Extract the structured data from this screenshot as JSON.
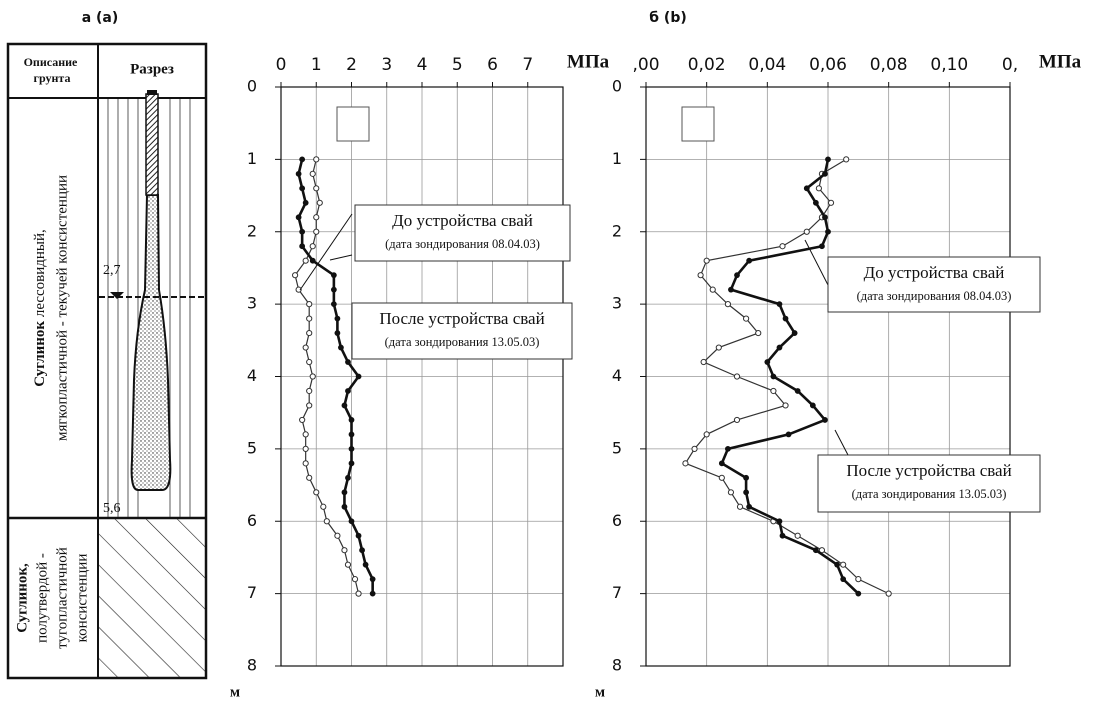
{
  "panel_labels": [
    "а (а)",
    "б (b)"
  ],
  "soil_column": {
    "header": {
      "description": [
        "Описание",
        "грунта"
      ],
      "section": "Разрез"
    },
    "layers": [
      {
        "name": "Суглинок",
        "text": [
          " лессовидный,",
          "мягкопластичной - текучей консистенции"
        ]
      },
      {
        "name": "Суглинок,",
        "text": [
          "полутвердой -",
          "тугопластичной",
          "консистенции"
        ]
      }
    ],
    "marks": [
      "2,7",
      "5,6"
    ]
  },
  "chart_data": [
    {
      "type": "line",
      "x_unit": "МПа",
      "y_unit": "м",
      "xlim": [
        0,
        8
      ],
      "xticks": [
        0,
        1,
        2,
        3,
        4,
        5,
        6,
        7
      ],
      "ylim": [
        0,
        8
      ],
      "yticks": [
        0,
        1,
        2,
        3,
        4,
        5,
        6,
        7,
        8
      ],
      "grid": true,
      "depth": [
        1.0,
        1.2,
        1.4,
        1.6,
        1.8,
        2.0,
        2.2,
        2.4,
        2.6,
        2.8,
        3.0,
        3.2,
        3.4,
        3.6,
        3.8,
        4.0,
        4.2,
        4.4,
        4.6,
        4.8,
        5.0,
        5.2,
        5.4,
        5.6,
        5.8,
        6.0,
        6.2,
        6.4,
        6.6,
        6.8,
        7.0
      ],
      "series": [
        {
          "name": "До устройства свай",
          "annotation": "(дата зондирования 08.04.03)",
          "marker": "open",
          "color": "#333333",
          "values": [
            1.0,
            0.9,
            1.0,
            1.1,
            1.0,
            1.0,
            0.9,
            0.7,
            0.4,
            0.5,
            0.8,
            0.8,
            0.8,
            0.7,
            0.8,
            0.9,
            0.8,
            0.8,
            0.6,
            0.7,
            0.7,
            0.7,
            0.8,
            1.0,
            1.2,
            1.3,
            1.6,
            1.8,
            1.9,
            2.1,
            2.2
          ]
        },
        {
          "name": "После устройства свай",
          "annotation": "(дата зондирования 13.05.03)",
          "marker": "filled",
          "color": "#111111",
          "values": [
            0.6,
            0.5,
            0.6,
            0.7,
            0.5,
            0.6,
            0.6,
            0.9,
            1.5,
            1.5,
            1.5,
            1.6,
            1.6,
            1.7,
            1.9,
            2.2,
            1.9,
            1.8,
            2.0,
            2.0,
            2.0,
            2.0,
            1.9,
            1.8,
            1.8,
            2.0,
            2.2,
            2.3,
            2.4,
            2.6,
            2.6
          ]
        }
      ]
    },
    {
      "type": "line",
      "x_unit": "МПа",
      "y_unit": "м",
      "xlim": [
        0,
        0.12
      ],
      "xticks": [
        {
          "value": 0,
          "label": ",00"
        },
        {
          "value": 0.02,
          "label": "0,02"
        },
        {
          "value": 0.04,
          "label": "0,04"
        },
        {
          "value": 0.06,
          "label": "0,06"
        },
        {
          "value": 0.08,
          "label": "0,08"
        },
        {
          "value": 0.1,
          "label": "0,10"
        },
        {
          "value": 0.12,
          "label": "0,"
        }
      ],
      "ylim": [
        0,
        8
      ],
      "yticks": [
        0,
        1,
        2,
        3,
        4,
        5,
        6,
        7,
        8
      ],
      "grid": true,
      "depth": [
        1.0,
        1.2,
        1.4,
        1.6,
        1.8,
        2.0,
        2.2,
        2.4,
        2.6,
        2.8,
        3.0,
        3.2,
        3.4,
        3.6,
        3.8,
        4.0,
        4.2,
        4.4,
        4.6,
        4.8,
        5.0,
        5.2,
        5.4,
        5.6,
        5.8,
        6.0,
        6.2,
        6.4,
        6.6,
        6.8,
        7.0
      ],
      "series": [
        {
          "name": "До устройства свай",
          "annotation": "(дата зондирования 08.04.03)",
          "marker": "open",
          "color": "#333333",
          "values": [
            0.066,
            0.058,
            0.057,
            0.061,
            0.058,
            0.053,
            0.045,
            0.02,
            0.018,
            0.022,
            0.027,
            0.033,
            0.037,
            0.024,
            0.019,
            0.03,
            0.042,
            0.046,
            0.03,
            0.02,
            0.016,
            0.013,
            0.025,
            0.028,
            0.031,
            0.042,
            0.05,
            0.058,
            0.065,
            0.07,
            0.08
          ]
        },
        {
          "name": "После устройства свай",
          "annotation": "(дата зондирования 13.05.03)",
          "marker": "filled",
          "color": "#111111",
          "values": [
            0.06,
            0.059,
            0.053,
            0.056,
            0.059,
            0.06,
            0.058,
            0.034,
            0.03,
            0.028,
            0.044,
            0.046,
            0.049,
            0.044,
            0.04,
            0.042,
            0.05,
            0.055,
            0.059,
            0.047,
            0.027,
            0.025,
            0.033,
            0.033,
            0.034,
            0.044,
            0.045,
            0.056,
            0.063,
            0.065,
            0.07
          ]
        }
      ]
    }
  ]
}
